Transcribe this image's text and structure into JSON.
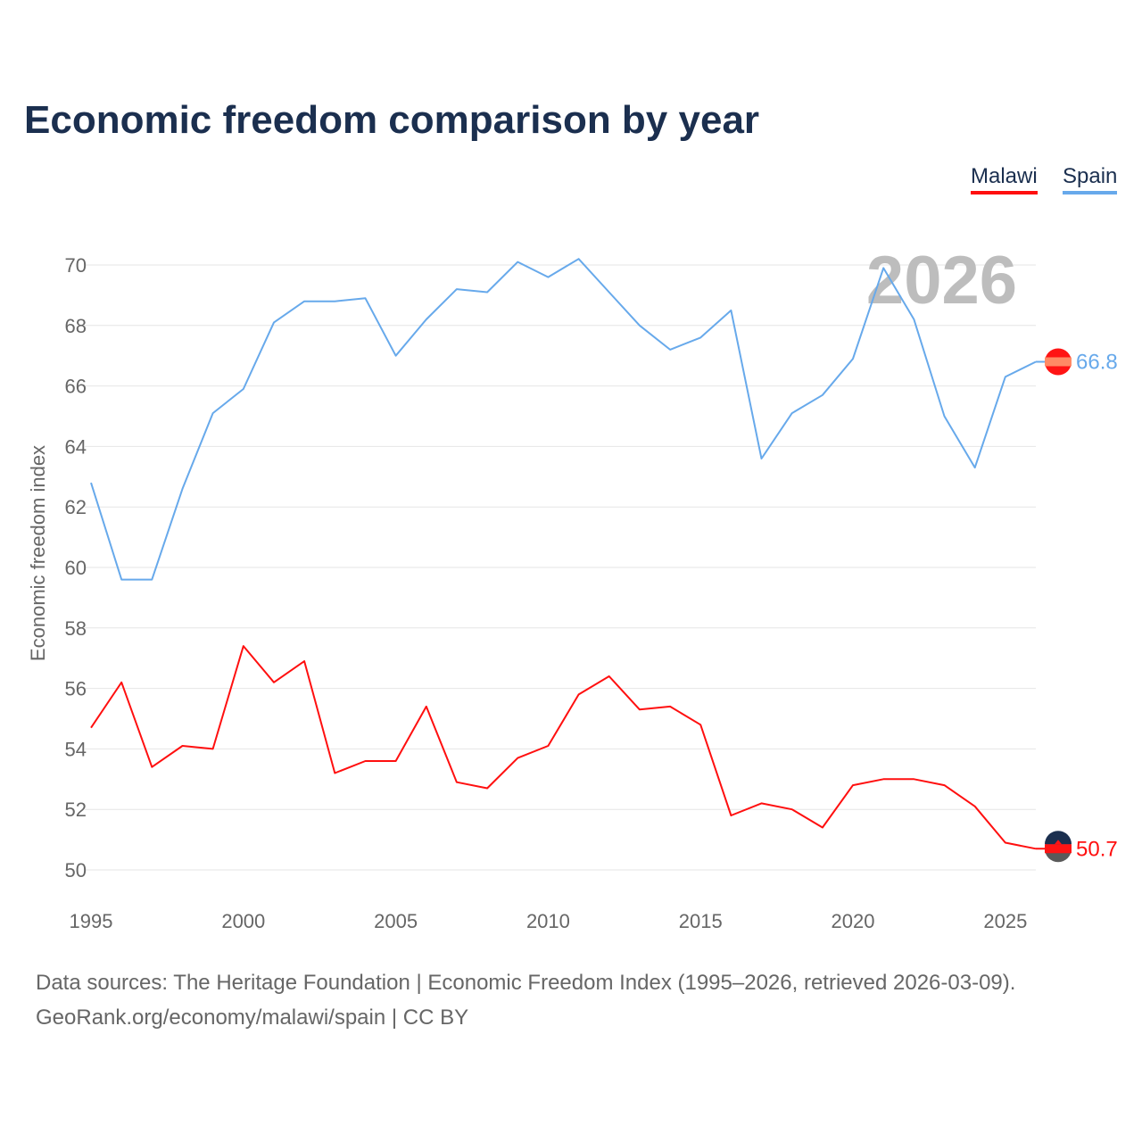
{
  "title": "Economic freedom comparison by year",
  "chart_data": {
    "type": "line",
    "title": "Economic freedom comparison by year",
    "xlabel": "",
    "ylabel": "Economic freedom index",
    "xlim": [
      1995,
      2026
    ],
    "ylim": [
      50,
      70
    ],
    "x_ticks": [
      "1995",
      "2000",
      "2005",
      "2010",
      "2015",
      "2020",
      "2025"
    ],
    "y_ticks": [
      "50",
      "52",
      "54",
      "56",
      "58",
      "60",
      "62",
      "64",
      "66",
      "68",
      "70"
    ],
    "year_watermark": "2026",
    "legend_position": "top-right",
    "x": [
      1995,
      1996,
      1997,
      1998,
      1999,
      2000,
      2001,
      2002,
      2003,
      2004,
      2005,
      2006,
      2007,
      2008,
      2009,
      2010,
      2011,
      2012,
      2013,
      2014,
      2015,
      2016,
      2017,
      2018,
      2019,
      2020,
      2021,
      2022,
      2023,
      2024,
      2025,
      2026
    ],
    "series": [
      {
        "name": "Malawi",
        "color": "#ff0f0f",
        "end_label": "50.7",
        "values": [
          54.7,
          56.2,
          53.4,
          54.1,
          54.0,
          57.4,
          56.2,
          56.9,
          53.2,
          53.6,
          53.6,
          55.4,
          52.9,
          52.7,
          53.7,
          54.1,
          55.8,
          56.4,
          55.3,
          55.4,
          54.8,
          51.8,
          52.2,
          52.0,
          51.4,
          52.8,
          53.0,
          53.0,
          52.8,
          52.1,
          50.9,
          50.7
        ]
      },
      {
        "name": "Spain",
        "color": "#67a9eb",
        "end_label": "66.8",
        "values": [
          62.8,
          59.6,
          59.6,
          62.6,
          65.1,
          65.9,
          68.1,
          68.8,
          68.8,
          68.9,
          67.0,
          68.2,
          69.2,
          69.1,
          70.1,
          69.6,
          70.2,
          69.1,
          68.0,
          67.2,
          67.6,
          68.5,
          63.6,
          65.1,
          65.7,
          66.9,
          69.9,
          68.2,
          65.0,
          63.3,
          66.3,
          66.8
        ]
      }
    ]
  },
  "source_line1": "Data sources: The Heritage Foundation | Economic Freedom Index (1995–2026, retrieved 2026-03-09).",
  "source_line2": "GeoRank.org/economy/malawi/spain | CC BY"
}
